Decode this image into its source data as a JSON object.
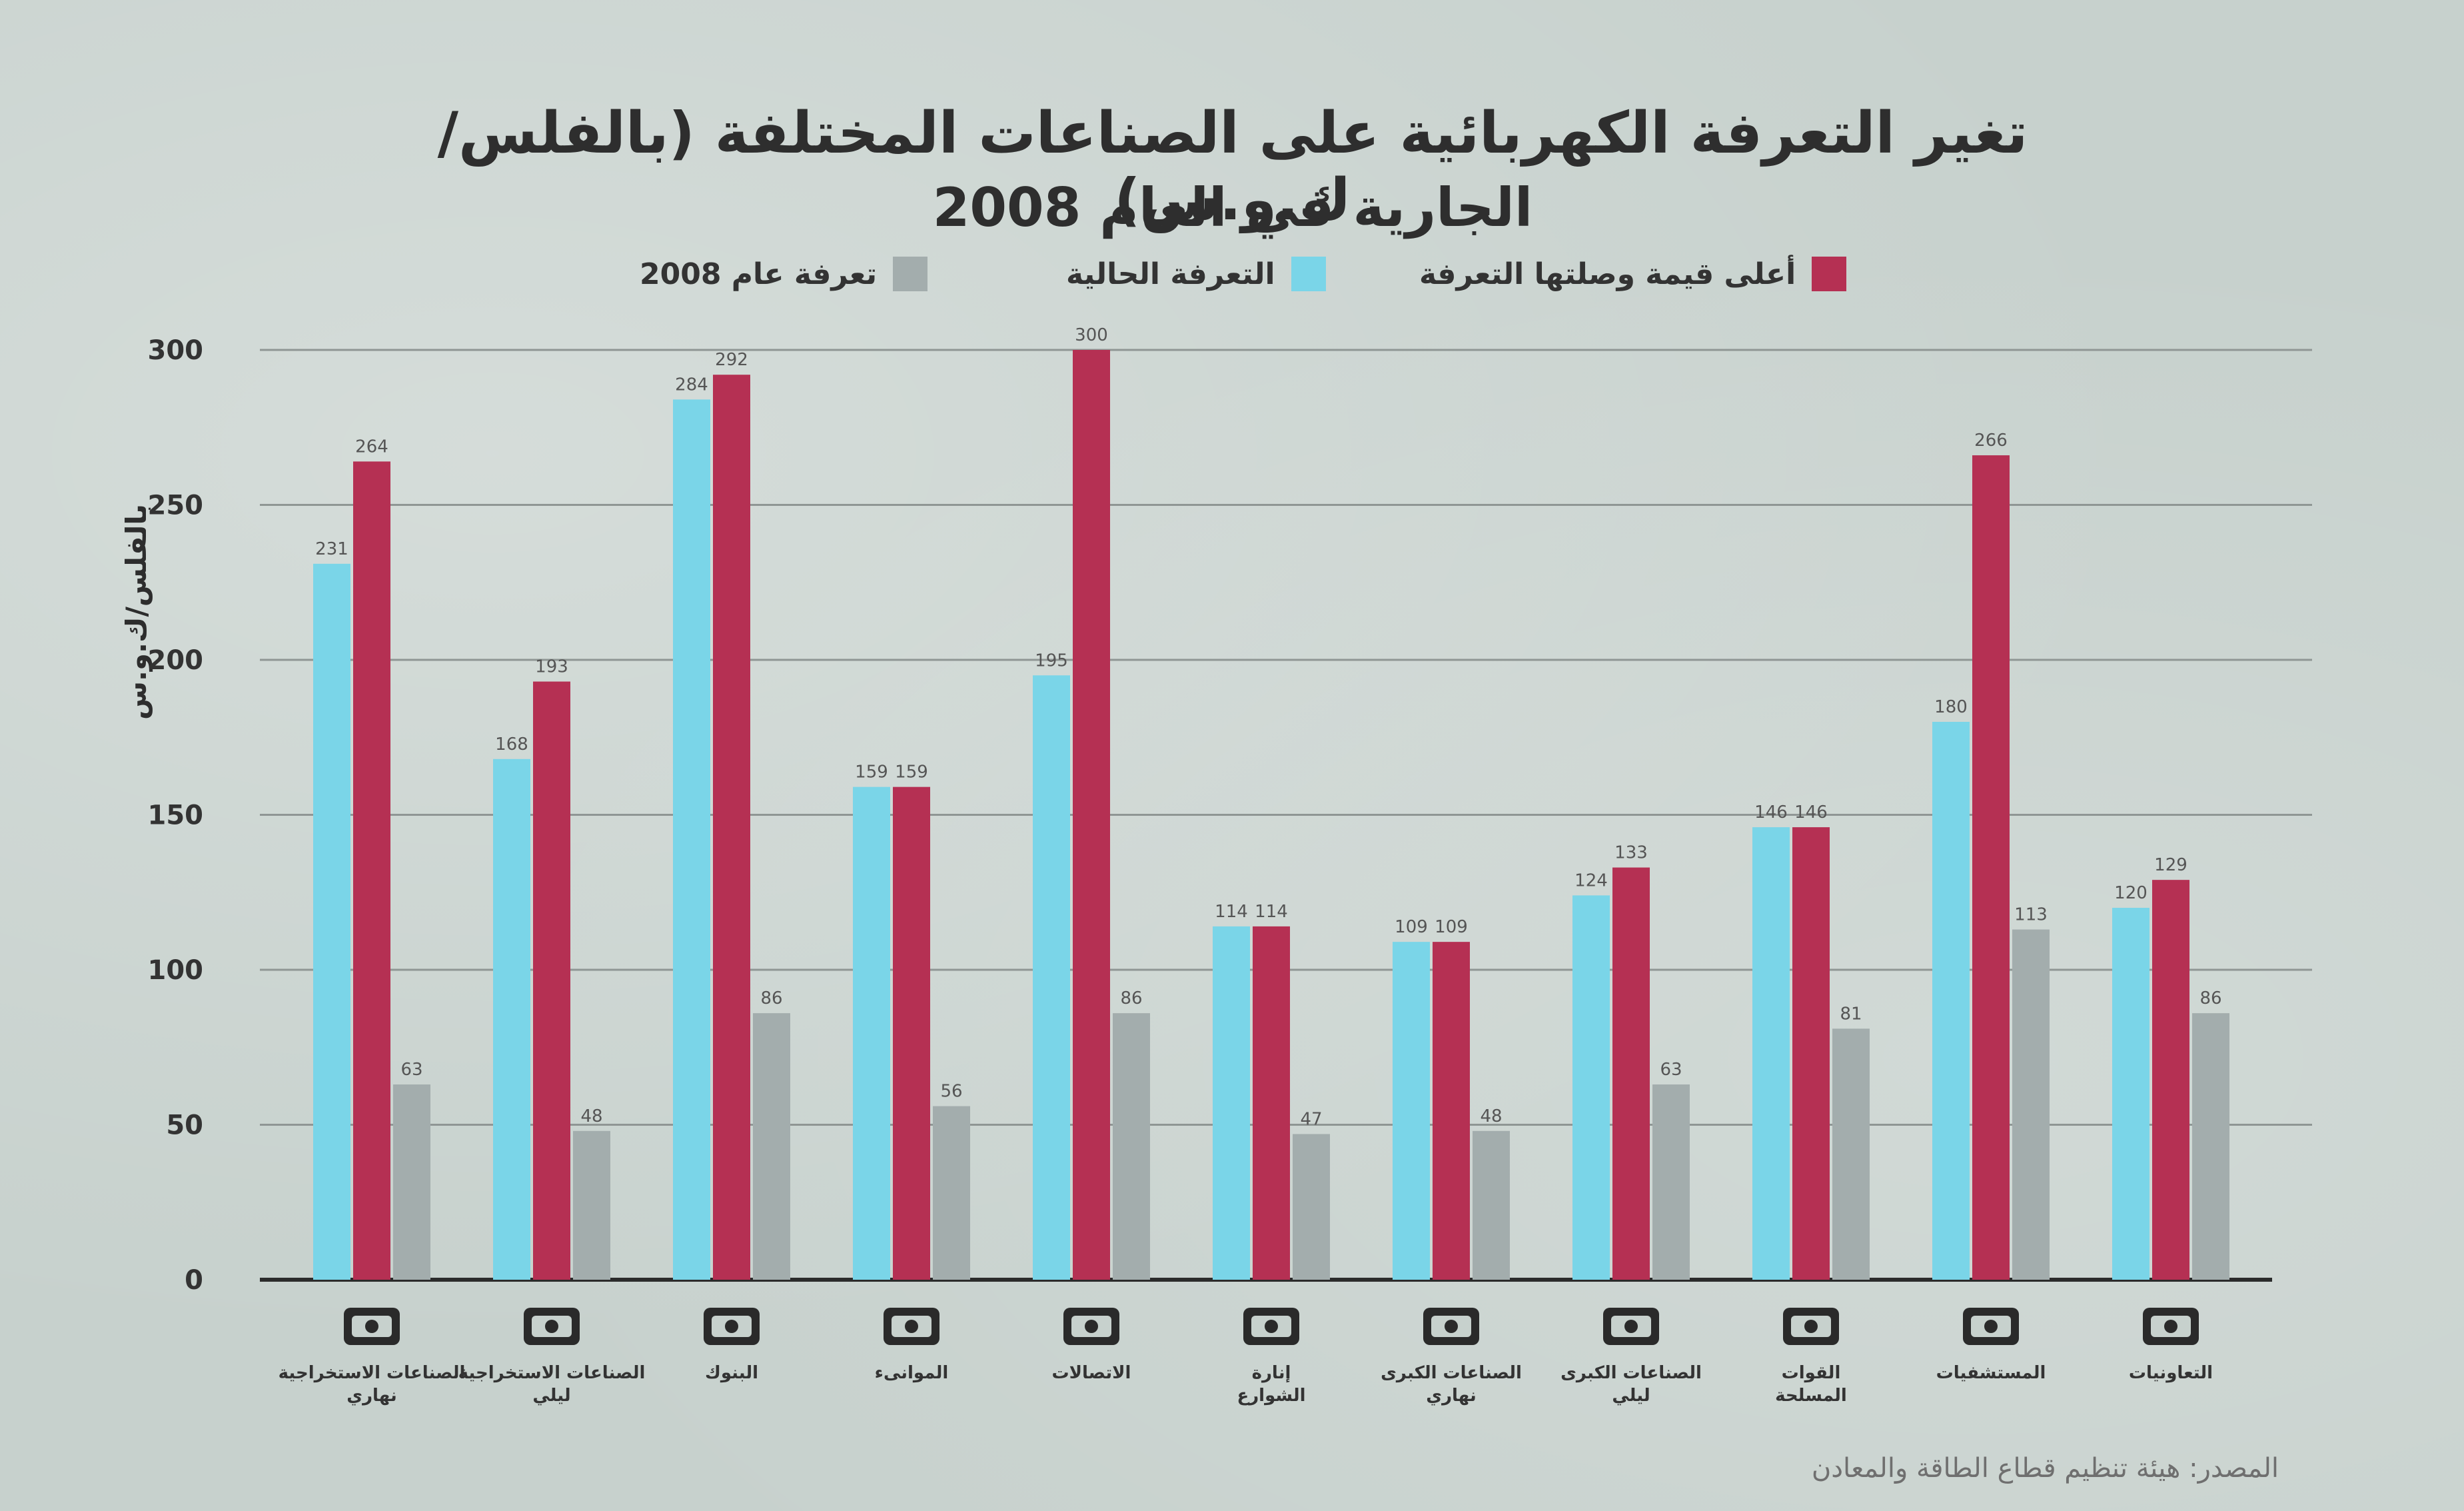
{
  "title_line1": "تغير التعرفة الكهربائية على الصناعات المختلفة (بالفلس/ك.و.س)",
  "title_line2": "الجارية في العام 2008",
  "source": "المصدر: هيئة تنظيم قطاع الطاقة والمعادن",
  "colors": {
    "current": "#7ad5e8",
    "highest": "#b53053",
    "tariff2008": "#a3adad",
    "grid": "#8f9694",
    "axis_text": "#333333"
  },
  "chart_data": {
    "type": "bar",
    "ylabel": "بالفلس/ك.و.س",
    "ylim": [
      0,
      300
    ],
    "yticks": [
      0,
      50,
      100,
      150,
      200,
      250,
      300
    ],
    "grid": true,
    "legend_position": "top",
    "categories": [
      "الصناعات الاستخراجية نهاري",
      "الصناعات الاستخراجية ليلي",
      "البنوك",
      "الموانىء",
      "الاتصالات",
      "إنارة الشوارع",
      "الصناعات الكبرى نهاري",
      "الصناعات الكبرى ليلي",
      "القوات المسلحة",
      "المستشفيات",
      "التعاونيات"
    ],
    "icons": [
      "excavator-sun-icon",
      "excavator-moon-icon",
      "banknote-icon",
      "anchor-icon",
      "telephone-icon",
      "street-lamp-icon",
      "factory-sun-icon",
      "factory-moon-icon",
      "army-emblem-icon",
      "hospital-building-icon",
      "handshake-icon"
    ],
    "series": [
      {
        "name": "التعرفة الحالية",
        "key": "current",
        "values": [
          231,
          168,
          284,
          159,
          195,
          114,
          109,
          124,
          146,
          180,
          120
        ]
      },
      {
        "name": "أعلى قيمة وصلتها التعرفة",
        "key": "highest",
        "values": [
          264,
          193,
          292,
          159,
          300,
          114,
          109,
          133,
          146,
          266,
          129
        ]
      },
      {
        "name": "تعرفة عام 2008",
        "key": "tariff2008",
        "values": [
          63,
          48,
          86,
          56,
          86,
          47,
          48,
          63,
          81,
          113,
          86
        ]
      }
    ]
  }
}
